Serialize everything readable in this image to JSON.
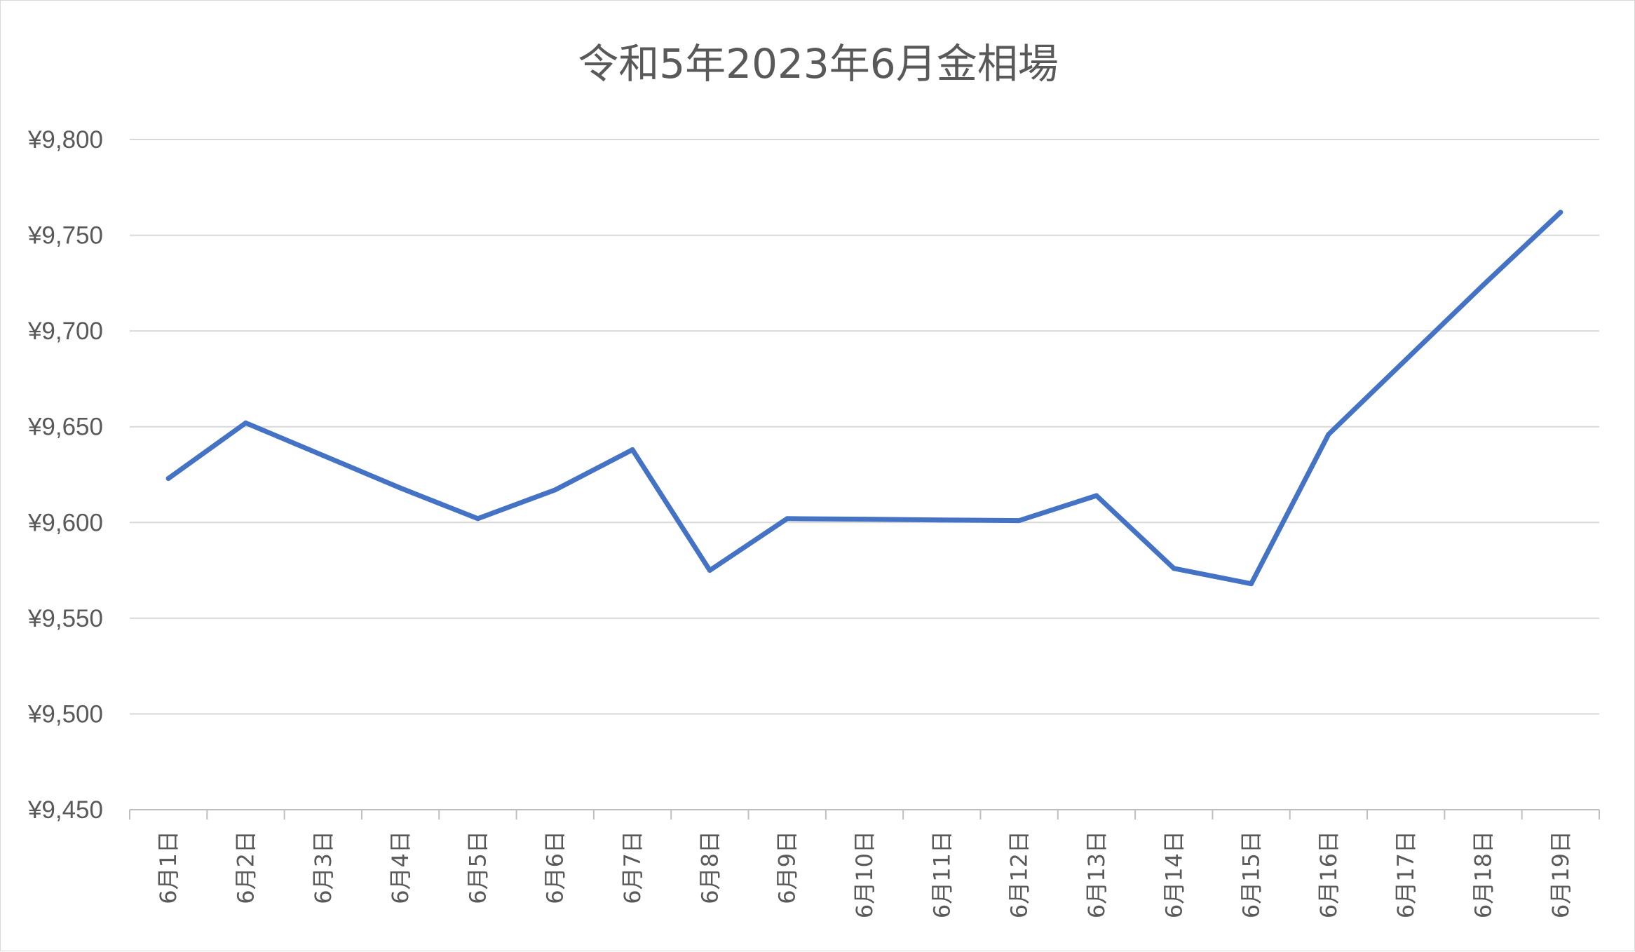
{
  "chart_data": {
    "type": "line",
    "title": "令和5年2023年6月金相場",
    "xlabel": "",
    "ylabel": "",
    "ylim": [
      9450,
      9800
    ],
    "ytick_step": 50,
    "ytick_format": "yen",
    "grid": true,
    "legend": "none",
    "categories": [
      "6月1日",
      "6月2日",
      "6月3日",
      "6月4日",
      "6月5日",
      "6月6日",
      "6月7日",
      "6月8日",
      "6月9日",
      "6月10日",
      "6月11日",
      "6月12日",
      "6月13日",
      "6月14日",
      "6月15日",
      "6月16日",
      "6月17日",
      "6月18日",
      "6月19日"
    ],
    "series": [
      {
        "color": "#4472c4",
        "values": [
          9623,
          9652,
          9635,
          9618,
          9602,
          9617,
          9638,
          9575,
          9602,
          9601.7,
          9601.3,
          9601,
          9614,
          9576,
          9568,
          9646,
          9685,
          9724,
          9762
        ]
      }
    ]
  }
}
